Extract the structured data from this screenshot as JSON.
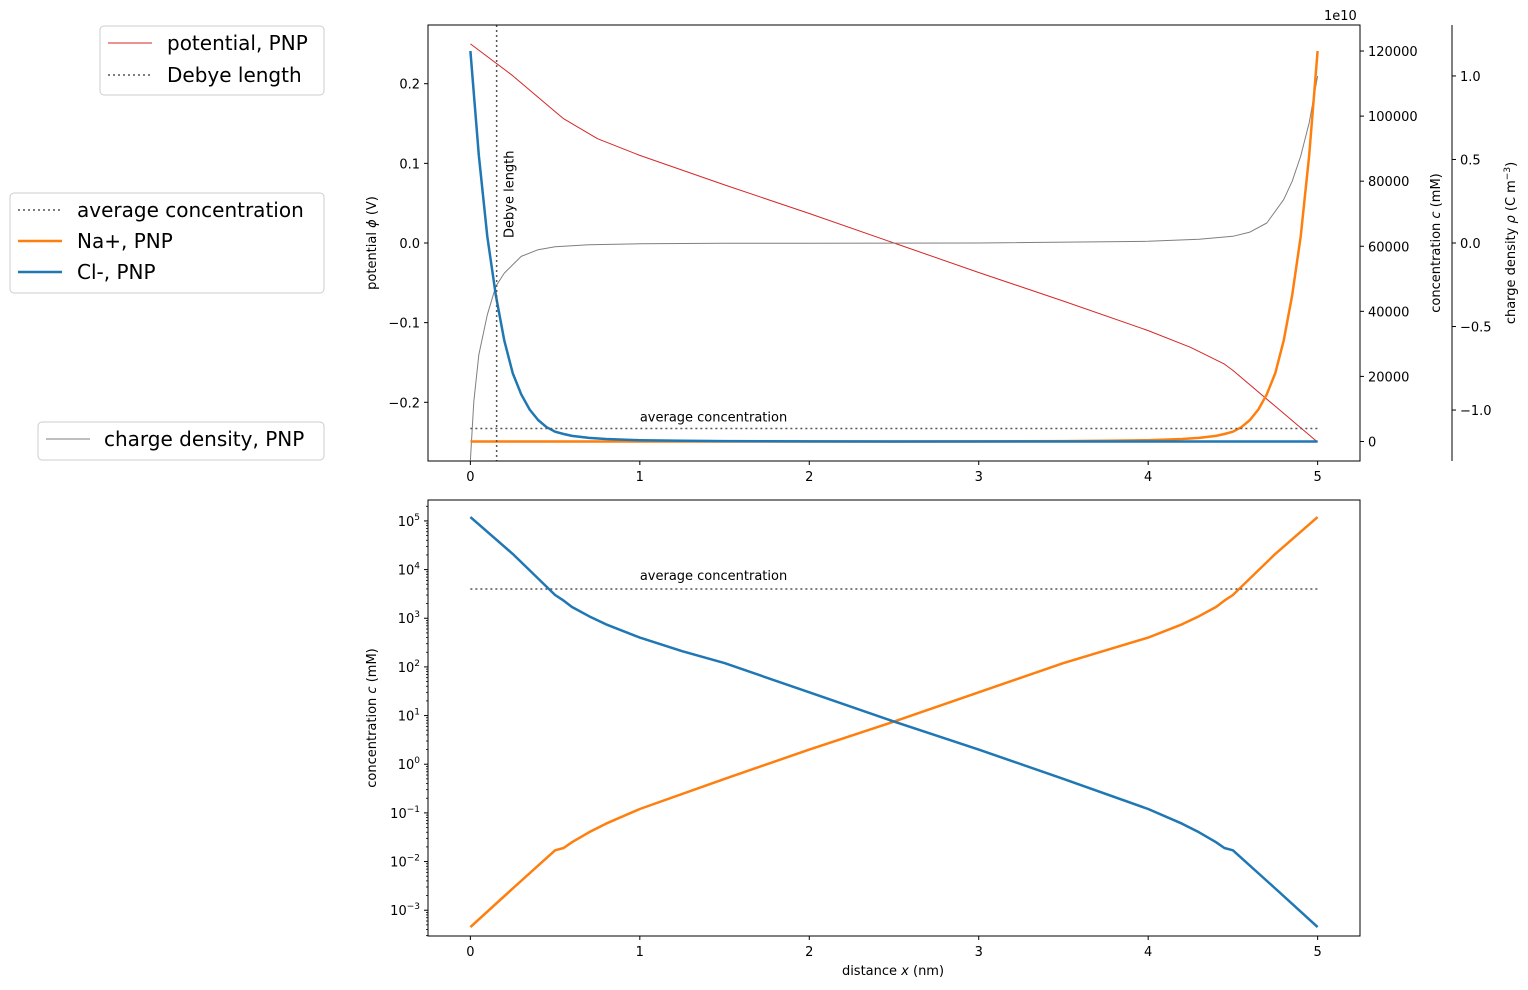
{
  "chart_data": [
    {
      "type": "line",
      "panel": "top",
      "xlim": [
        -0.25,
        5.25
      ],
      "x_ticks": [
        "0",
        "1",
        "2",
        "3",
        "4",
        "5"
      ],
      "left_axis": {
        "label_main": "potential ",
        "label_sym": "ϕ",
        "label_unit": " (V)",
        "ylim": [
          -0.2737,
          0.2737
        ],
        "ticks": [
          {
            "v": 0.2,
            "t": "0.2"
          },
          {
            "v": 0.1,
            "t": "0.1"
          },
          {
            "v": 0.0,
            "t": "0.0"
          },
          {
            "v": -0.1,
            "t": "−0.1"
          },
          {
            "v": -0.2,
            "t": "−0.2"
          }
        ]
      },
      "right_axis_conc": {
        "label_main": "concentration ",
        "label_sym": "c",
        "label_unit": " (mM)",
        "ylim": [
          -6000,
          128000
        ],
        "ticks": [
          {
            "v": 0,
            "t": "0"
          },
          {
            "v": 20000,
            "t": "20000"
          },
          {
            "v": 40000,
            "t": "40000"
          },
          {
            "v": 60000,
            "t": "60000"
          },
          {
            "v": 80000,
            "t": "80000"
          },
          {
            "v": 100000,
            "t": "100000"
          },
          {
            "v": 120000,
            "t": "120000"
          }
        ]
      },
      "right_axis_charge": {
        "label_main": "charge density ",
        "label_sym": "ρ",
        "label_unit": " (C m",
        "label_sup": "−3",
        "label_end": ")",
        "offset_text": "1e10",
        "ylim": [
          -1.305,
          1.305
        ],
        "ticks": [
          {
            "v": 1.0,
            "t": "1.0"
          },
          {
            "v": 0.5,
            "t": "0.5"
          },
          {
            "v": 0.0,
            "t": "0.0"
          },
          {
            "v": -0.5,
            "t": "−0.5"
          },
          {
            "v": -1.0,
            "t": "−1.0"
          }
        ]
      },
      "annotations": {
        "debye_text": "Debye length",
        "avg_text": "average concentration"
      },
      "debye_length_x": 0.155,
      "average_concentration_mM": 4000,
      "series": [
        {
          "name": "potential, PNP",
          "axis": "potential",
          "color": "#d62728",
          "x": [
            0,
            0.25,
            0.5,
            0.55,
            0.75,
            1.0,
            1.5,
            2.0,
            2.5,
            3.0,
            3.5,
            4.0,
            4.25,
            4.45,
            4.5,
            4.75,
            5.0
          ],
          "y": [
            0.25,
            0.21,
            0.165,
            0.156,
            0.131,
            0.11,
            0.073,
            0.037,
            0.0,
            -0.037,
            -0.073,
            -0.11,
            -0.131,
            -0.152,
            -0.16,
            -0.205,
            -0.25
          ]
        },
        {
          "name": "charge density, PNP",
          "axis": "charge",
          "color": "#7f7f7f",
          "x": [
            0,
            0.02,
            0.05,
            0.1,
            0.15,
            0.2,
            0.3,
            0.4,
            0.5,
            0.7,
            1.0,
            1.5,
            2.0,
            3.0,
            4.0,
            4.3,
            4.5,
            4.6,
            4.7,
            4.8,
            4.85,
            4.9,
            4.95,
            5.0
          ],
          "y": [
            -1.3,
            -0.95,
            -0.67,
            -0.43,
            -0.26,
            -0.18,
            -0.08,
            -0.04,
            -0.022,
            -0.01,
            -0.005,
            -0.002,
            -0.001,
            0.0,
            0.01,
            0.022,
            0.04,
            0.065,
            0.12,
            0.26,
            0.37,
            0.52,
            0.72,
            1.0
          ]
        },
        {
          "name": "Cl-, PNP",
          "axis": "concentration",
          "color": "#1f77b4",
          "x": [
            0,
            0.05,
            0.1,
            0.15,
            0.2,
            0.25,
            0.3,
            0.35,
            0.4,
            0.45,
            0.5,
            0.55,
            0.6,
            0.7,
            0.8,
            1.0,
            1.25,
            1.5,
            2.0,
            2.5,
            3.0,
            3.5,
            4.0,
            4.5,
            4.75,
            5.0
          ],
          "y": [
            120000,
            88000,
            63000,
            45000,
            31000,
            21000,
            14500,
            9800,
            6600,
            4400,
            3000,
            2300,
            1700,
            1100,
            750,
            400,
            210,
            120,
            30,
            7.5,
            2,
            0.5,
            0.12,
            0.017,
            0.0028,
            0.00045
          ]
        },
        {
          "name": "Na+, PNP",
          "axis": "concentration",
          "color": "#ff7f0e",
          "x": [
            0,
            0.25,
            0.5,
            0.75,
            1.0,
            1.5,
            2.0,
            2.5,
            3.0,
            3.5,
            3.75,
            4.0,
            4.2,
            4.3,
            4.4,
            4.45,
            4.5,
            4.55,
            4.6,
            4.65,
            4.7,
            4.75,
            4.8,
            4.85,
            4.9,
            4.95,
            5.0
          ],
          "y": [
            0.00045,
            0.0028,
            0.017,
            0.06,
            0.12,
            0.5,
            2,
            7.5,
            30,
            120,
            210,
            400,
            750,
            1100,
            1700,
            2300,
            3000,
            4400,
            6600,
            9800,
            14500,
            21000,
            31000,
            45000,
            63000,
            88000,
            120000
          ]
        }
      ]
    },
    {
      "type": "line",
      "panel": "bottom",
      "yscale": "log",
      "xlim": [
        -0.25,
        5.25
      ],
      "x_ticks": [
        "0",
        "1",
        "2",
        "3",
        "4",
        "5"
      ],
      "xlabel_main": "distance ",
      "xlabel_sym": "x",
      "xlabel_unit": " (nm)",
      "ylabel_main": "concentration ",
      "ylabel_sym": "c",
      "ylabel_unit": " (mM)",
      "ylim_log10": [
        -3.53,
        5.43
      ],
      "y_ticks": [
        {
          "e": 5,
          "base": "10",
          "sup": "5"
        },
        {
          "e": 4,
          "base": "10",
          "sup": "4"
        },
        {
          "e": 3,
          "base": "10",
          "sup": "3"
        },
        {
          "e": 2,
          "base": "10",
          "sup": "2"
        },
        {
          "e": 1,
          "base": "10",
          "sup": "1"
        },
        {
          "e": 0,
          "base": "10",
          "sup": "0"
        },
        {
          "e": -1,
          "base": "10",
          "sup": "−1"
        },
        {
          "e": -2,
          "base": "10",
          "sup": "−2"
        },
        {
          "e": -3,
          "base": "10",
          "sup": "−3"
        }
      ],
      "annotations": {
        "avg_text": "average concentration"
      },
      "average_concentration_mM": 4000,
      "series": [
        {
          "name": "Cl-, PNP",
          "color": "#1f77b4",
          "x": [
            0,
            0.25,
            0.5,
            0.55,
            0.6,
            0.7,
            0.8,
            1.0,
            1.25,
            1.5,
            2.0,
            2.5,
            3.0,
            3.5,
            4.0,
            4.2,
            4.3,
            4.4,
            4.45,
            4.5,
            4.75,
            5.0
          ],
          "y": [
            120000,
            21000,
            3000,
            2300,
            1700,
            1100,
            750,
            400,
            210,
            120,
            30,
            7.5,
            2,
            0.5,
            0.12,
            0.06,
            0.04,
            0.025,
            0.019,
            0.017,
            0.0028,
            0.00045
          ]
        },
        {
          "name": "Na+, PNP",
          "color": "#ff7f0e",
          "x": [
            0,
            0.25,
            0.5,
            0.55,
            0.6,
            0.7,
            0.8,
            1.0,
            1.5,
            2.0,
            2.5,
            3.0,
            3.5,
            4.0,
            4.2,
            4.3,
            4.4,
            4.45,
            4.5,
            4.75,
            5.0
          ],
          "y": [
            0.00045,
            0.0028,
            0.017,
            0.019,
            0.025,
            0.04,
            0.06,
            0.12,
            0.5,
            2,
            7.5,
            30,
            120,
            400,
            750,
            1100,
            1700,
            2300,
            3000,
            21000,
            120000
          ]
        }
      ]
    }
  ],
  "legends": {
    "potential": [
      {
        "label": "potential, PNP",
        "color": "#d62728",
        "style": "thin"
      },
      {
        "label": "Debye length",
        "color": "#555555",
        "style": "dotted"
      }
    ],
    "concentration": [
      {
        "label": "average concentration",
        "color": "#555555",
        "style": "dotted"
      },
      {
        "label": "Na+, PNP",
        "color": "#ff7f0e",
        "style": "thick"
      },
      {
        "label": "Cl-, PNP",
        "color": "#1f77b4",
        "style": "thick"
      }
    ],
    "charge": [
      {
        "label": "charge density, PNP",
        "color": "#7f7f7f",
        "style": "thin"
      }
    ]
  }
}
